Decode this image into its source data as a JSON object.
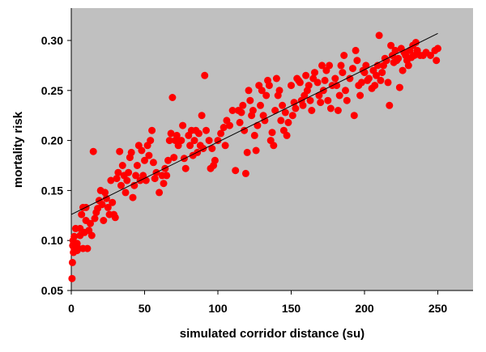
{
  "chart_data": {
    "type": "scatter",
    "title": "",
    "xlabel": "simulated corridor distance (su)",
    "ylabel": "mortality risk",
    "xlim": [
      0,
      260
    ],
    "ylim": [
      0.05,
      0.32
    ],
    "x_ticks": [
      "0",
      "50",
      "100",
      "150",
      "200",
      "250"
    ],
    "y_ticks": [
      "0.05",
      "0.10",
      "0.15",
      "0.20",
      "0.25",
      "0.30"
    ],
    "grid": false,
    "legend": "none",
    "colors": {
      "plot_background": "#c0c0c0",
      "points": "#ff0000",
      "trend_line": "#000000"
    },
    "trend_line": {
      "x": [
        0,
        250
      ],
      "y": [
        0.126,
        0.307
      ]
    },
    "points": [
      [
        0.5,
        0.062
      ],
      [
        0.8,
        0.078
      ],
      [
        1,
        0.095
      ],
      [
        1.2,
        0.1
      ],
      [
        1.5,
        0.088
      ],
      [
        2,
        0.092
      ],
      [
        2,
        0.104
      ],
      [
        3,
        0.112
      ],
      [
        4,
        0.097
      ],
      [
        4,
        0.09
      ],
      [
        5,
        0.092
      ],
      [
        6,
        0.112
      ],
      [
        6,
        0.105
      ],
      [
        7,
        0.126
      ],
      [
        8,
        0.133
      ],
      [
        8,
        0.092
      ],
      [
        9,
        0.108
      ],
      [
        10,
        0.133
      ],
      [
        10,
        0.12
      ],
      [
        11,
        0.092
      ],
      [
        12,
        0.11
      ],
      [
        13,
        0.117
      ],
      [
        14,
        0.105
      ],
      [
        15,
        0.189
      ],
      [
        16,
        0.122
      ],
      [
        17,
        0.128
      ],
      [
        18,
        0.132
      ],
      [
        19,
        0.14
      ],
      [
        20,
        0.15
      ],
      [
        21,
        0.136
      ],
      [
        22,
        0.12
      ],
      [
        23,
        0.148
      ],
      [
        24,
        0.142
      ],
      [
        25,
        0.133
      ],
      [
        26,
        0.126
      ],
      [
        27,
        0.16
      ],
      [
        28,
        0.138
      ],
      [
        29,
        0.126
      ],
      [
        30,
        0.123
      ],
      [
        31,
        0.162
      ],
      [
        32,
        0.168
      ],
      [
        33,
        0.189
      ],
      [
        34,
        0.155
      ],
      [
        35,
        0.175
      ],
      [
        36,
        0.165
      ],
      [
        37,
        0.148
      ],
      [
        38,
        0.16
      ],
      [
        39,
        0.168
      ],
      [
        40,
        0.183
      ],
      [
        41,
        0.188
      ],
      [
        42,
        0.143
      ],
      [
        43,
        0.155
      ],
      [
        44,
        0.165
      ],
      [
        45,
        0.175
      ],
      [
        46,
        0.195
      ],
      [
        47,
        0.16
      ],
      [
        48,
        0.19
      ],
      [
        49,
        0.165
      ],
      [
        50,
        0.18
      ],
      [
        51,
        0.16
      ],
      [
        52,
        0.195
      ],
      [
        53,
        0.185
      ],
      [
        54,
        0.2
      ],
      [
        55,
        0.21
      ],
      [
        56,
        0.178
      ],
      [
        57,
        0.162
      ],
      [
        58,
        0.168
      ],
      [
        60,
        0.148
      ],
      [
        62,
        0.165
      ],
      [
        63,
        0.157
      ],
      [
        64,
        0.172
      ],
      [
        65,
        0.165
      ],
      [
        66,
        0.18
      ],
      [
        67,
        0.2
      ],
      [
        68,
        0.207
      ],
      [
        69,
        0.243
      ],
      [
        70,
        0.183
      ],
      [
        71,
        0.2
      ],
      [
        72,
        0.205
      ],
      [
        73,
        0.195
      ],
      [
        75,
        0.2
      ],
      [
        76,
        0.215
      ],
      [
        77,
        0.182
      ],
      [
        78,
        0.172
      ],
      [
        80,
        0.205
      ],
      [
        81,
        0.195
      ],
      [
        82,
        0.21
      ],
      [
        83,
        0.185
      ],
      [
        84,
        0.2
      ],
      [
        85,
        0.21
      ],
      [
        86,
        0.188
      ],
      [
        87,
        0.207
      ],
      [
        88,
        0.195
      ],
      [
        89,
        0.225
      ],
      [
        90,
        0.192
      ],
      [
        91,
        0.265
      ],
      [
        92,
        0.21
      ],
      [
        94,
        0.2
      ],
      [
        95,
        0.172
      ],
      [
        96,
        0.192
      ],
      [
        97,
        0.175
      ],
      [
        98,
        0.18
      ],
      [
        100,
        0.2
      ],
      [
        102,
        0.207
      ],
      [
        104,
        0.213
      ],
      [
        105,
        0.195
      ],
      [
        106,
        0.22
      ],
      [
        108,
        0.215
      ],
      [
        110,
        0.23
      ],
      [
        112,
        0.17
      ],
      [
        114,
        0.23
      ],
      [
        115,
        0.218
      ],
      [
        116,
        0.228
      ],
      [
        117,
        0.235
      ],
      [
        118,
        0.21
      ],
      [
        119,
        0.167
      ],
      [
        120,
        0.188
      ],
      [
        121,
        0.25
      ],
      [
        122,
        0.24
      ],
      [
        123,
        0.225
      ],
      [
        124,
        0.23
      ],
      [
        125,
        0.205
      ],
      [
        126,
        0.19
      ],
      [
        127,
        0.215
      ],
      [
        128,
        0.255
      ],
      [
        129,
        0.235
      ],
      [
        130,
        0.25
      ],
      [
        131,
        0.225
      ],
      [
        132,
        0.22
      ],
      [
        133,
        0.245
      ],
      [
        134,
        0.26
      ],
      [
        135,
        0.255
      ],
      [
        136,
        0.2
      ],
      [
        137,
        0.208
      ],
      [
        138,
        0.195
      ],
      [
        139,
        0.23
      ],
      [
        140,
        0.262
      ],
      [
        141,
        0.245
      ],
      [
        142,
        0.25
      ],
      [
        143,
        0.22
      ],
      [
        144,
        0.235
      ],
      [
        145,
        0.21
      ],
      [
        146,
        0.228
      ],
      [
        147,
        0.205
      ],
      [
        148,
        0.218
      ],
      [
        150,
        0.255
      ],
      [
        151,
        0.225
      ],
      [
        152,
        0.238
      ],
      [
        153,
        0.232
      ],
      [
        154,
        0.262
      ],
      [
        155,
        0.26
      ],
      [
        156,
        0.258
      ],
      [
        157,
        0.24
      ],
      [
        158,
        0.235
      ],
      [
        159,
        0.245
      ],
      [
        160,
        0.265
      ],
      [
        161,
        0.25
      ],
      [
        162,
        0.255
      ],
      [
        163,
        0.24
      ],
      [
        164,
        0.23
      ],
      [
        165,
        0.262
      ],
      [
        166,
        0.268
      ],
      [
        168,
        0.258
      ],
      [
        169,
        0.245
      ],
      [
        170,
        0.238
      ],
      [
        171,
        0.275
      ],
      [
        172,
        0.25
      ],
      [
        173,
        0.26
      ],
      [
        174,
        0.27
      ],
      [
        175,
        0.24
      ],
      [
        176,
        0.275
      ],
      [
        177,
        0.232
      ],
      [
        178,
        0.255
      ],
      [
        180,
        0.262
      ],
      [
        181,
        0.255
      ],
      [
        182,
        0.23
      ],
      [
        183,
        0.245
      ],
      [
        184,
        0.275
      ],
      [
        185,
        0.268
      ],
      [
        186,
        0.285
      ],
      [
        187,
        0.25
      ],
      [
        188,
        0.24
      ],
      [
        190,
        0.262
      ],
      [
        192,
        0.272
      ],
      [
        193,
        0.225
      ],
      [
        194,
        0.29
      ],
      [
        195,
        0.28
      ],
      [
        196,
        0.255
      ],
      [
        197,
        0.245
      ],
      [
        198,
        0.258
      ],
      [
        199,
        0.27
      ],
      [
        200,
        0.268
      ],
      [
        201,
        0.275
      ],
      [
        202,
        0.26
      ],
      [
        203,
        0.262
      ],
      [
        205,
        0.252
      ],
      [
        206,
        0.27
      ],
      [
        207,
        0.255
      ],
      [
        208,
        0.265
      ],
      [
        209,
        0.275
      ],
      [
        210,
        0.305
      ],
      [
        211,
        0.26
      ],
      [
        212,
        0.268
      ],
      [
        213,
        0.275
      ],
      [
        214,
        0.282
      ],
      [
        215,
        0.28
      ],
      [
        216,
        0.258
      ],
      [
        217,
        0.235
      ],
      [
        218,
        0.295
      ],
      [
        219,
        0.285
      ],
      [
        220,
        0.278
      ],
      [
        221,
        0.29
      ],
      [
        222,
        0.28
      ],
      [
        223,
        0.282
      ],
      [
        224,
        0.253
      ],
      [
        225,
        0.292
      ],
      [
        226,
        0.27
      ],
      [
        227,
        0.288
      ],
      [
        228,
        0.285
      ],
      [
        229,
        0.28
      ],
      [
        230,
        0.275
      ],
      [
        231,
        0.29
      ],
      [
        232,
        0.283
      ],
      [
        233,
        0.295
      ],
      [
        234,
        0.285
      ],
      [
        235,
        0.298
      ],
      [
        236,
        0.29
      ],
      [
        238,
        0.285
      ],
      [
        240,
        0.285
      ],
      [
        242,
        0.288
      ],
      [
        245,
        0.285
      ],
      [
        248,
        0.29
      ],
      [
        249,
        0.28
      ],
      [
        250,
        0.292
      ]
    ]
  }
}
